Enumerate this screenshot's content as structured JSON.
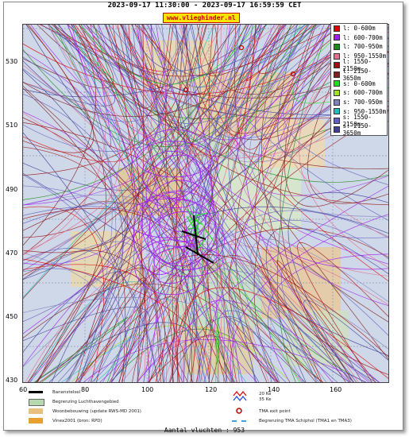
{
  "header": {
    "title": "2023-09-17 11:30:00 - 2023-09-17 16:59:59 CET",
    "site": "www.vlieghinder.nl"
  },
  "axes": {
    "y_ticks": [
      "530",
      "510",
      "490",
      "470",
      "450",
      "430"
    ],
    "x_ticks": [
      "60",
      "80",
      "100",
      "120",
      "140",
      "160"
    ]
  },
  "legend": {
    "entries": [
      {
        "label": "l: 0-600m",
        "color": "#e00000"
      },
      {
        "label": "l: 600-700m",
        "color": "#a020f0"
      },
      {
        "label": "l: 700-950m",
        "color": "#1a8a1a"
      },
      {
        "label": "l: 950-1550m",
        "color": "#e07090"
      },
      {
        "label": "l: 1550-2150m",
        "color": "#a01010"
      },
      {
        "label": "l: 2150-3650m",
        "color": "#802020"
      },
      {
        "label": "s: 0-600m",
        "color": "#20e020"
      },
      {
        "label": "s: 600-700m",
        "color": "#a0e020"
      },
      {
        "label": "s: 700-950m",
        "color": "#8080c0"
      },
      {
        "label": "s: 950-1550m",
        "color": "#20c0c0"
      },
      {
        "label": "s: 1550-2150m",
        "color": "#6060c0"
      },
      {
        "label": "s: 2150-3650m",
        "color": "#40409a"
      }
    ]
  },
  "map_legend": {
    "runway": "Banenstelsel",
    "airport": "Begrenzing Luchthavengebied",
    "housing": "Woonbebouwing (update RWS-MD 2001)",
    "vinex": "Vinex2001 (bron: RPD)",
    "contour_20": "20 Ke",
    "contour_35": "35 Ke",
    "tma_exit": "TMA exit point",
    "tma_border": "Begrenzing TMA Schiphol  (TMA1 en TMA3)"
  },
  "footer": {
    "count": "Aantal vluchten : 953"
  }
}
